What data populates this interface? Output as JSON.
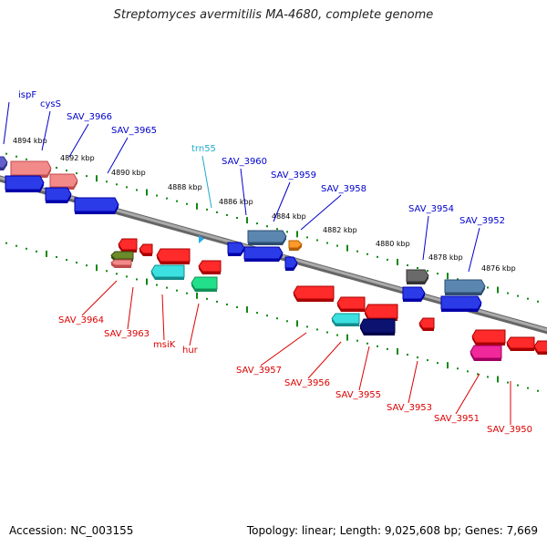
{
  "title": "Streptomyces avermitilis MA-4680, complete genome",
  "footer": {
    "accession": "Accession: NC_003155",
    "summary": "Topology: linear; Length: 9,025,608 bp; Genes: 7,669"
  },
  "colors": {
    "forward_label": "#0000cc",
    "reverse_label": "#dd0000",
    "rna_label": "#22aacc",
    "tick": "#118811",
    "axis": "#888888"
  },
  "kbp_ticks": [
    {
      "text": "4894 kbp"
    },
    {
      "text": "4892 kbp"
    },
    {
      "text": "4890 kbp"
    },
    {
      "text": "4888 kbp"
    },
    {
      "text": "4886 kbp"
    },
    {
      "text": "4884 kbp"
    },
    {
      "text": "4882 kbp"
    },
    {
      "text": "4880 kbp"
    },
    {
      "text": "4878 kbp"
    },
    {
      "text": "4876 kbp"
    }
  ],
  "forward_labels": [
    "ispF",
    "cysS",
    "SAV_3966",
    "SAV_3965",
    "trn55",
    "SAV_3960",
    "SAV_3959",
    "SAV_3958",
    "SAV_3954",
    "SAV_3952"
  ],
  "reverse_labels": [
    "SAV_3964",
    "SAV_3963",
    "msiK",
    "hur",
    "SAV_3957",
    "SAV_3956",
    "SAV_3955",
    "SAV_3953",
    "SAV_3951",
    "SAV_3950"
  ]
}
